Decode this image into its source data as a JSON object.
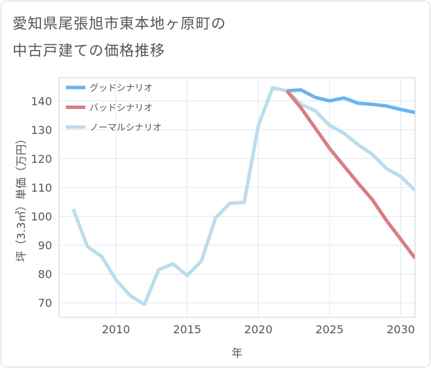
{
  "chart_data": {
    "type": "line",
    "title_lines": [
      "愛知県尾張旭市東本地ヶ原町の",
      "中古戸建ての価格推移"
    ],
    "xlabel": "年",
    "ylabel": "坪（3.3㎡）単価（万円）",
    "xlim": [
      2006,
      2031
    ],
    "ylim": [
      65,
      148
    ],
    "xticks": [
      2010,
      2015,
      2020,
      2025,
      2030
    ],
    "yticks": [
      70,
      80,
      90,
      100,
      110,
      120,
      130,
      140
    ],
    "grid": true,
    "legend_position": "top-left",
    "series": [
      {
        "name": "グッドシナリオ",
        "color": "#6cb4ec",
        "x": [
          2022,
          2023,
          2024,
          2025,
          2026,
          2027,
          2028,
          2029,
          2030,
          2031
        ],
        "y": [
          143.5,
          143.8,
          141.2,
          140.0,
          141.0,
          139.2,
          138.8,
          138.2,
          137.0,
          136.0
        ]
      },
      {
        "name": "バッドシナリオ",
        "color": "#d97e84",
        "x": [
          2022,
          2023,
          2024,
          2025,
          2026,
          2027,
          2028,
          2029,
          2030,
          2031
        ],
        "y": [
          143.5,
          137.5,
          130.5,
          123.5,
          117.5,
          111.5,
          105.8,
          98.5,
          92.0,
          85.5
        ]
      },
      {
        "name": "ノーマルシナリオ",
        "color": "#bcdcec",
        "x": [
          2007,
          2008,
          2009,
          2010,
          2011,
          2012,
          2013,
          2014,
          2015,
          2016,
          2017,
          2018,
          2019,
          2020,
          2021,
          2022,
          2023,
          2024,
          2025,
          2026,
          2027,
          2028,
          2029,
          2030,
          2031
        ],
        "y": [
          102.5,
          89.5,
          86.0,
          78.0,
          72.5,
          69.5,
          81.5,
          83.5,
          79.5,
          84.5,
          99.5,
          104.5,
          104.8,
          131.5,
          144.5,
          143.5,
          138.8,
          136.5,
          131.5,
          128.8,
          124.8,
          121.5,
          116.5,
          113.8,
          109.0
        ]
      }
    ]
  }
}
